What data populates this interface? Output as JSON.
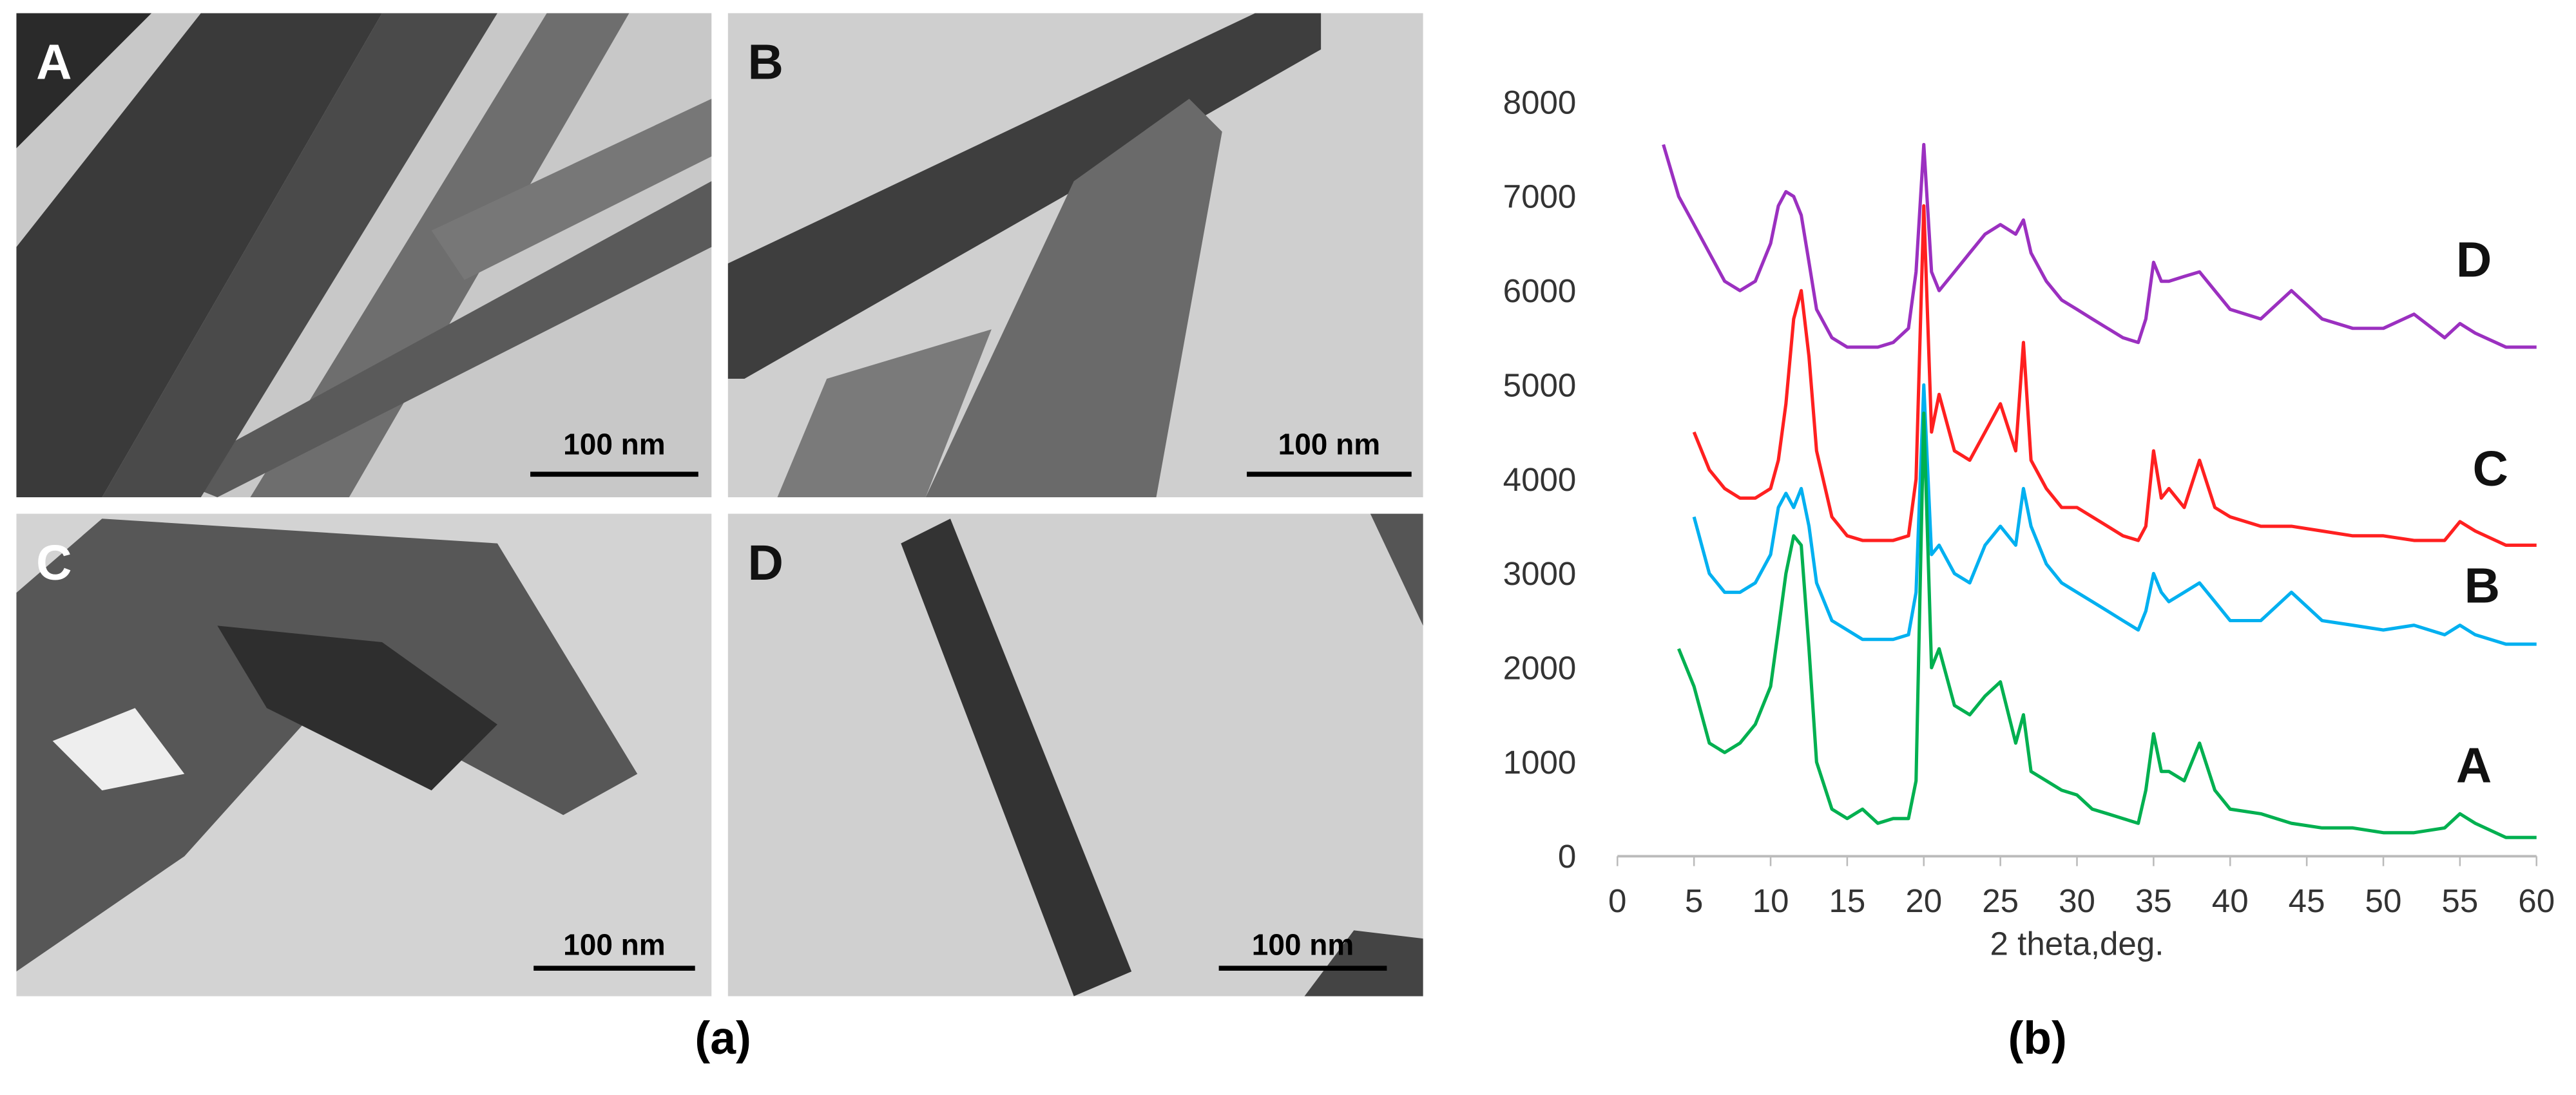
{
  "panels": [
    {
      "label": "A",
      "scale_bar": "100 nm"
    },
    {
      "label": "B",
      "scale_bar": "100 nm"
    },
    {
      "label": "C",
      "scale_bar": "100 nm"
    },
    {
      "label": "D",
      "scale_bar": "100 nm"
    }
  ],
  "captions": [
    "(a)",
    "(b)"
  ],
  "chart_data": {
    "type": "line",
    "x_label": "2 theta,deg.",
    "x": [
      3,
      4,
      5,
      6,
      7,
      8,
      9,
      10,
      10.5,
      11,
      11.5,
      12,
      12.5,
      13,
      14,
      15,
      16,
      17,
      18,
      19,
      19.5,
      20,
      20.5,
      21,
      22,
      23,
      24,
      25,
      26,
      26.5,
      27,
      28,
      29,
      30,
      31,
      32,
      33,
      34,
      34.5,
      35,
      35.5,
      36,
      37,
      38,
      39,
      40,
      42,
      44,
      46,
      48,
      50,
      52,
      54,
      55,
      56,
      58,
      60
    ],
    "xlim": [
      0,
      60
    ],
    "xticks": [
      0,
      5,
      10,
      15,
      20,
      25,
      30,
      35,
      40,
      45,
      50,
      55,
      60
    ],
    "ylim": [
      0,
      8000
    ],
    "yticks": [
      0,
      1000,
      2000,
      3000,
      4000,
      5000,
      6000,
      7000,
      8000
    ],
    "grid": false,
    "series": [
      {
        "name": "D",
        "color": "#9b30c0",
        "values": [
          7550,
          7000,
          6700,
          6400,
          6100,
          6000,
          6100,
          6500,
          6900,
          7050,
          7000,
          6800,
          6300,
          5800,
          5500,
          5400,
          5400,
          5400,
          5450,
          5600,
          6200,
          7550,
          6200,
          6000,
          6200,
          6400,
          6600,
          6700,
          6600,
          6750,
          6400,
          6100,
          5900,
          5800,
          5700,
          5600,
          5500,
          5450,
          5700,
          6300,
          6100,
          6100,
          6150,
          6200,
          6000,
          5800,
          5700,
          6000,
          5700,
          5600,
          5600,
          5750,
          5500,
          5650,
          5550,
          5400,
          5400
        ]
      },
      {
        "name": "C",
        "color": "#ff2020",
        "values": [
          null,
          null,
          4500,
          4100,
          3900,
          3800,
          3800,
          3900,
          4200,
          4800,
          5700,
          6000,
          5300,
          4300,
          3600,
          3400,
          3350,
          3350,
          3350,
          3400,
          4000,
          6900,
          4500,
          4900,
          4300,
          4200,
          4500,
          4800,
          4300,
          5450,
          4200,
          3900,
          3700,
          3700,
          3600,
          3500,
          3400,
          3350,
          3500,
          4300,
          3800,
          3900,
          3700,
          4200,
          3700,
          3600,
          3500,
          3500,
          3450,
          3400,
          3400,
          3350,
          3350,
          3550,
          3450,
          3300,
          3300
        ]
      },
      {
        "name": "B",
        "color": "#00b0f0",
        "values": [
          null,
          null,
          3600,
          3000,
          2800,
          2800,
          2900,
          3200,
          3700,
          3850,
          3700,
          3900,
          3500,
          2900,
          2500,
          2400,
          2300,
          2300,
          2300,
          2350,
          2800,
          5000,
          3200,
          3300,
          3000,
          2900,
          3300,
          3500,
          3300,
          3900,
          3500,
          3100,
          2900,
          2800,
          2700,
          2600,
          2500,
          2400,
          2600,
          3000,
          2800,
          2700,
          2800,
          2900,
          2700,
          2500,
          2500,
          2800,
          2500,
          2450,
          2400,
          2450,
          2350,
          2450,
          2350,
          2250,
          2250
        ]
      },
      {
        "name": "A",
        "color": "#00b050",
        "values": [
          null,
          2200,
          1800,
          1200,
          1100,
          1200,
          1400,
          1800,
          2400,
          3000,
          3400,
          3300,
          2200,
          1000,
          500,
          400,
          500,
          350,
          400,
          400,
          800,
          4700,
          2000,
          2200,
          1600,
          1500,
          1700,
          1850,
          1200,
          1500,
          900,
          800,
          700,
          650,
          500,
          450,
          400,
          350,
          700,
          1300,
          900,
          900,
          800,
          1200,
          700,
          500,
          450,
          350,
          300,
          300,
          250,
          250,
          300,
          450,
          350,
          200,
          200
        ]
      }
    ]
  }
}
